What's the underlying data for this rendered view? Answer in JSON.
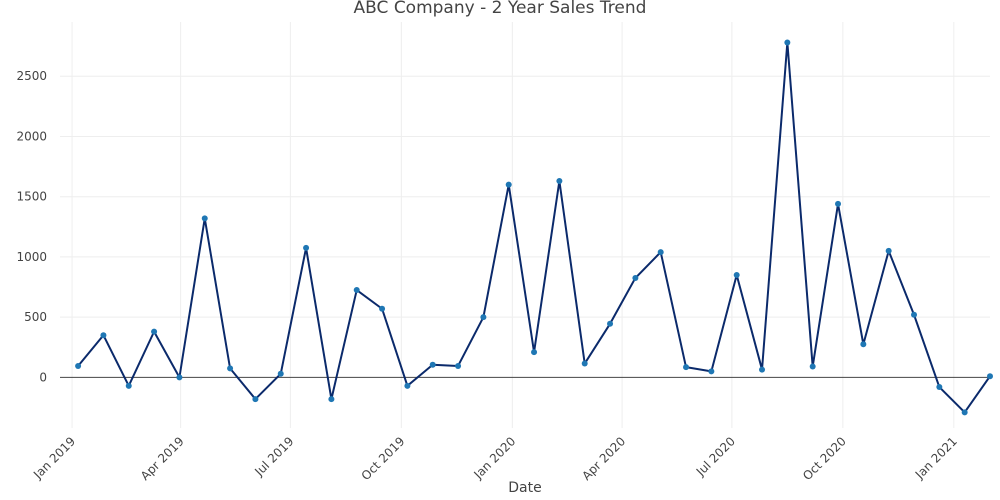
{
  "chart_data": {
    "type": "line",
    "title": "ABC Company - 2 Year Sales Trend",
    "xlabel": "Date",
    "ylabel": "",
    "ylim": [
      -420,
      2950
    ],
    "xlim": [
      "2018-12-22",
      "2021-01-31"
    ],
    "grid": true,
    "legend": "none",
    "yticks": [
      0,
      500,
      1000,
      1500,
      2000,
      2500
    ],
    "xticks": [
      {
        "date": "2019-01-01",
        "label": "Jan 2019"
      },
      {
        "date": "2019-04-01",
        "label": "Apr 2019"
      },
      {
        "date": "2019-07-01",
        "label": "Jul 2019"
      },
      {
        "date": "2019-10-01",
        "label": "Oct 2019"
      },
      {
        "date": "2020-01-01",
        "label": "Jan 2020"
      },
      {
        "date": "2020-04-01",
        "label": "Apr 2020"
      },
      {
        "date": "2020-07-01",
        "label": "Jul 2020"
      },
      {
        "date": "2020-10-01",
        "label": "Oct 2020"
      },
      {
        "date": "2021-01-01",
        "label": "Jan 2021"
      }
    ],
    "x": [
      "2019-01-06",
      "2019-01-27",
      "2019-02-17",
      "2019-03-10",
      "2019-03-31",
      "2019-04-21",
      "2019-05-12",
      "2019-06-02",
      "2019-06-23",
      "2019-07-14",
      "2019-08-04",
      "2019-08-25",
      "2019-09-15",
      "2019-10-06",
      "2019-10-27",
      "2019-11-17",
      "2019-12-08",
      "2019-12-29",
      "2020-01-19",
      "2020-02-09",
      "2020-03-01",
      "2020-03-22",
      "2020-04-12",
      "2020-05-03",
      "2020-05-24",
      "2020-06-14",
      "2020-07-05",
      "2020-07-26",
      "2020-08-16",
      "2020-09-06",
      "2020-09-27",
      "2020-10-18",
      "2020-11-08",
      "2020-11-29",
      "2020-12-20",
      "2021-01-10",
      "2021-01-31"
    ],
    "series": [
      {
        "color": "#0b2a6b",
        "marker_color": "#1f77b4",
        "values": [
          95,
          350,
          -70,
          380,
          0,
          1320,
          75,
          -180,
          30,
          1075,
          -180,
          725,
          570,
          -70,
          105,
          95,
          500,
          1600,
          210,
          1630,
          115,
          445,
          825,
          1040,
          85,
          50,
          850,
          65,
          2780,
          90,
          1440,
          275,
          1050,
          520,
          -80,
          -290,
          10
        ]
      }
    ]
  }
}
